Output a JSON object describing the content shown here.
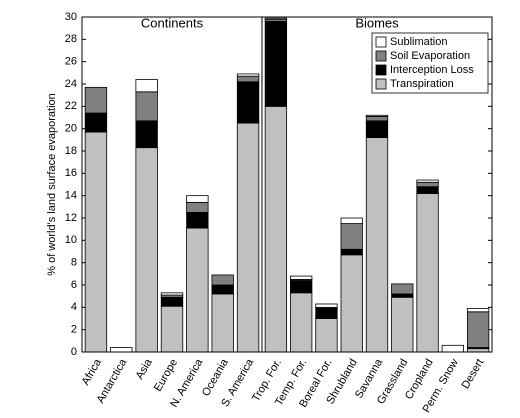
{
  "chart_data": [
    {
      "type": "bar",
      "stacked": true,
      "title": "Continents",
      "ylabel": "% of world's land surface evaporation",
      "ylim": [
        0,
        30
      ],
      "yticks": [
        0,
        2,
        4,
        6,
        8,
        10,
        12,
        14,
        16,
        18,
        20,
        22,
        24,
        26,
        28,
        30
      ],
      "categories": [
        "Africa",
        "Antarctica",
        "Asia",
        "Europe",
        "N. America",
        "Oceania",
        "S. America"
      ],
      "series": [
        {
          "color": "#c0c0c0",
          "values": [
            19.7,
            0,
            18.3,
            4.1,
            11.1,
            5.2,
            20.5
          ]
        },
        {
          "color": "#000000",
          "values": [
            1.7,
            0,
            2.4,
            0.8,
            1.4,
            0.8,
            3.7
          ]
        },
        {
          "color": "#808080",
          "values": [
            2.3,
            0,
            2.6,
            0.2,
            0.9,
            0.9,
            0.5
          ]
        },
        {
          "color": "#ffffff",
          "values": [
            0,
            0.4,
            1.1,
            0.2,
            0.6,
            0,
            0.2
          ]
        }
      ]
    },
    {
      "type": "bar",
      "stacked": true,
      "title": "Biomes",
      "legend": "upper right",
      "categories": [
        "Trop. For.",
        "Temp. For.",
        "Boreal For.",
        "Shrubland",
        "Savanna",
        "Grassland",
        "Cropland",
        "Perm. Snow",
        "Desert"
      ],
      "series": [
        {
          "name": "Transpiration",
          "color": "#c0c0c0",
          "values": [
            22.0,
            5.3,
            3.0,
            8.7,
            19.2,
            4.9,
            14.2,
            0,
            0.3
          ]
        },
        {
          "name": "Interception Loss",
          "color": "#000000",
          "values": [
            7.6,
            1.1,
            0.9,
            0.5,
            1.5,
            0.3,
            0.6,
            0,
            0.1
          ]
        },
        {
          "name": "Soil Evaporation",
          "color": "#808080",
          "values": [
            0.2,
            0.1,
            0.1,
            2.3,
            0.4,
            0.9,
            0.4,
            0,
            3.2
          ]
        },
        {
          "name": "Sublimation",
          "color": "#ffffff",
          "values": [
            0.1,
            0.3,
            0.3,
            0.5,
            0.1,
            0,
            0.2,
            0.6,
            0.3
          ]
        }
      ]
    }
  ]
}
